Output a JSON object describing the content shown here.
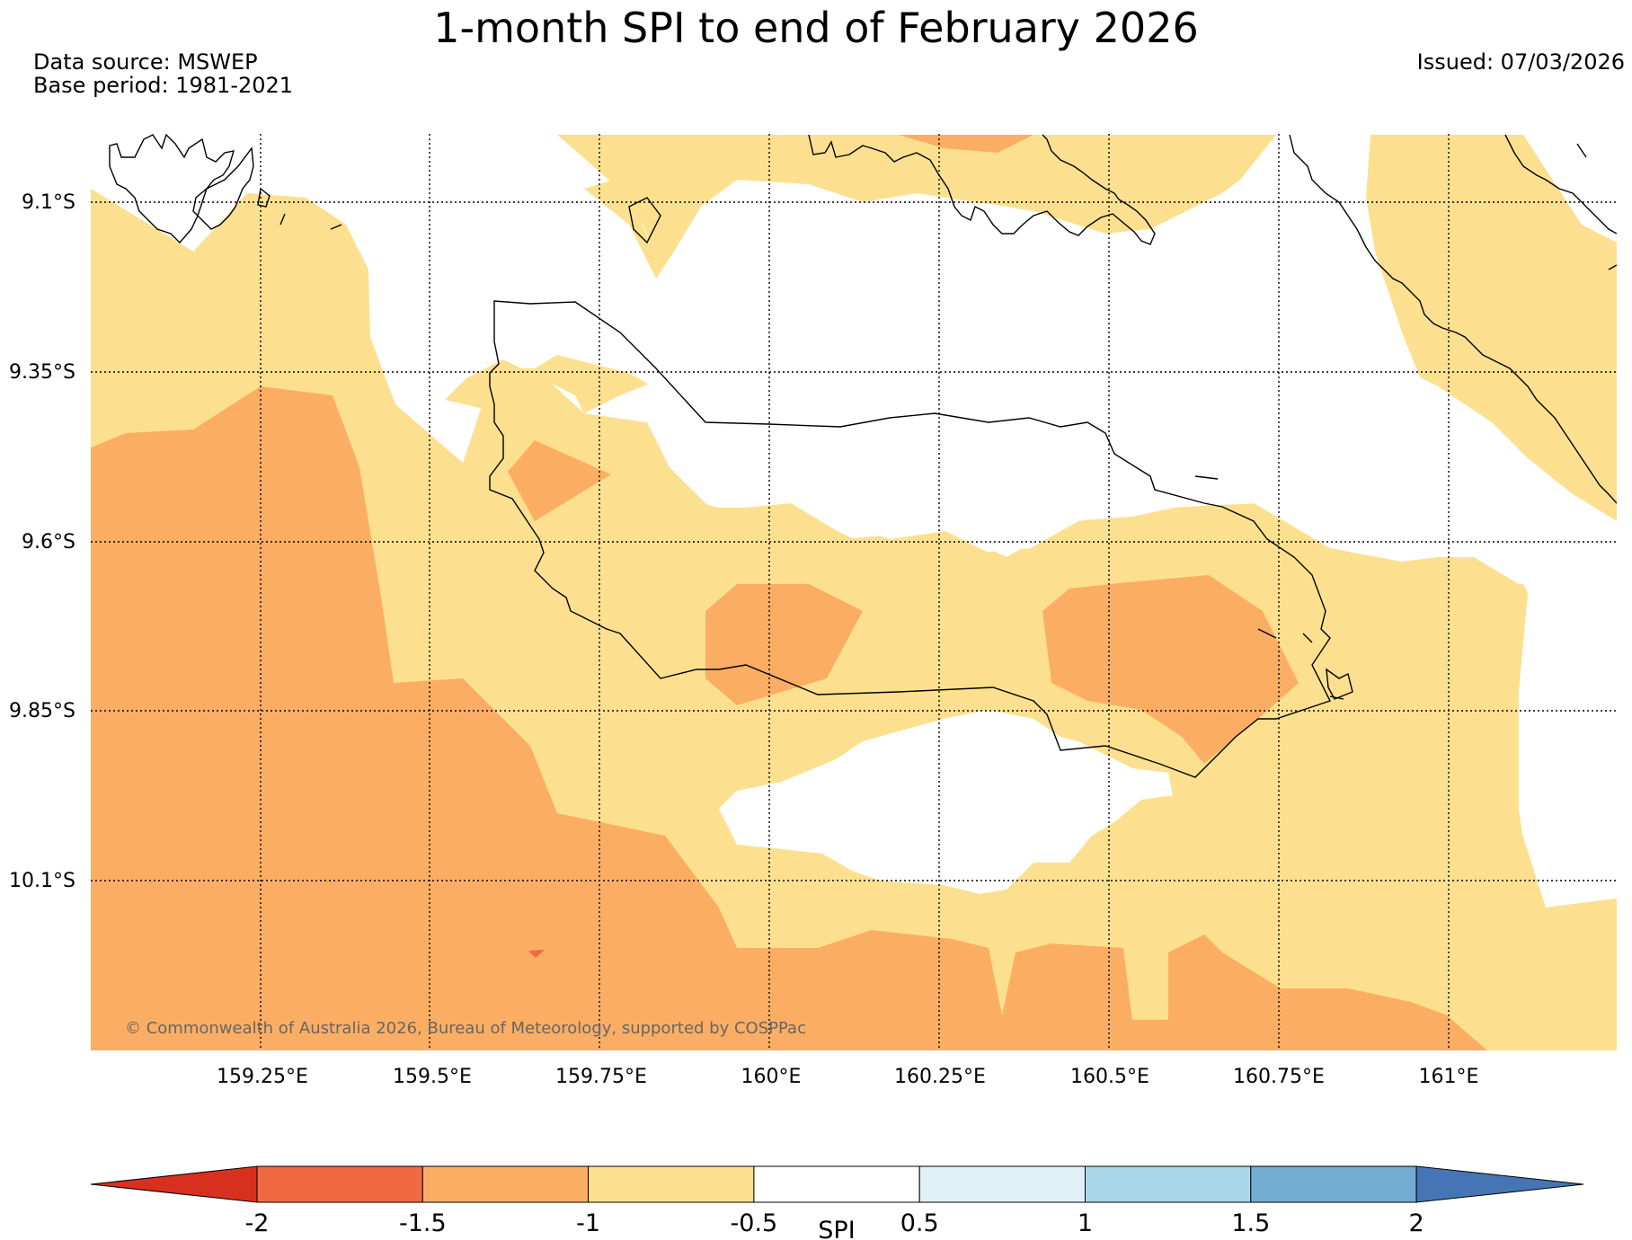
{
  "title": "1-month SPI to end of February 2026",
  "data_source": "Data source: MSWEP",
  "base_period": "Base period: 1981-2021",
  "issued": "Issued: 07/03/2026",
  "copyright": "© Commonwealth of Australia 2026, Bureau of Meteorology, supported by COSPPac",
  "map": {
    "lat_labels": [
      "9.1°S",
      "9.35°S",
      "9.6°S",
      "9.85°S",
      "10.1°S"
    ],
    "lon_labels": [
      "159.25°E",
      "159.5°E",
      "159.75°E",
      "160°E",
      "160.25°E",
      "160.5°E",
      "160.75°E",
      "161°E"
    ],
    "colors": {
      "very_dry": "#d7301f",
      "severe_dry": "#f16941",
      "moderate_dry": "#fbae63",
      "mild_dry": "#fde08f",
      "normal": "#ffffff",
      "mild_wet": "#dff1f7",
      "moderate_wet": "#abd8e9",
      "severe_wet": "#74add1",
      "very_wet": "#4575b4",
      "coastline": "#000000",
      "gridline": "#000000"
    }
  },
  "colorbar": {
    "label": "SPI",
    "ticks": [
      "-2",
      "-1.5",
      "-1",
      "-0.5",
      "0.5",
      "1",
      "1.5",
      "2"
    ],
    "segments": [
      {
        "range": "< -2",
        "color": "#d7301f"
      },
      {
        "range": "-2 to -1.5",
        "color": "#f16941"
      },
      {
        "range": "-1.5 to -1",
        "color": "#fbae63"
      },
      {
        "range": "-1 to -0.5",
        "color": "#fde08f"
      },
      {
        "range": "-0.5 to 0.5",
        "color": "#ffffff"
      },
      {
        "range": "0.5 to 1",
        "color": "#dff1f7"
      },
      {
        "range": "1 to 1.5",
        "color": "#abd8e9"
      },
      {
        "range": "1.5 to 2",
        "color": "#74add1"
      },
      {
        "range": "> 2",
        "color": "#4575b4"
      }
    ]
  }
}
